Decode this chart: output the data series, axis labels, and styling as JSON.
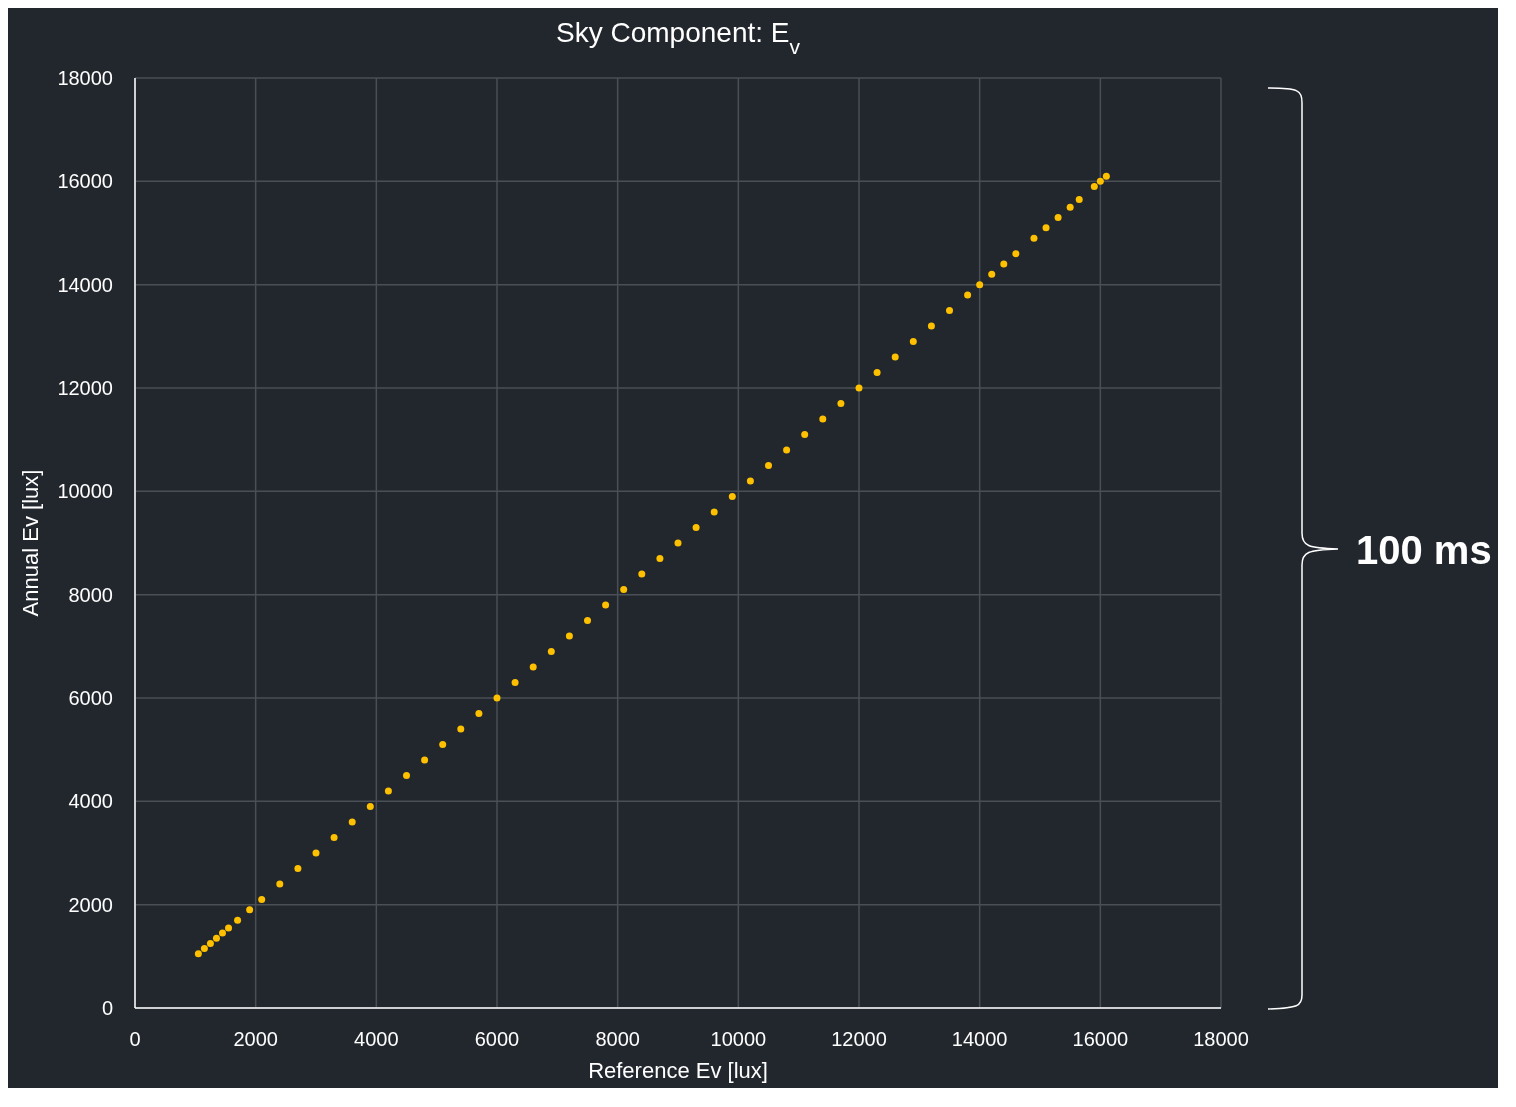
{
  "chart_data": {
    "type": "scatter",
    "title": "Sky Component: E$_{v}$",
    "xlabel": "Reference Ev [lux]",
    "ylabel": "Annual Ev [lux]",
    "x": [
      1050,
      1150,
      1250,
      1350,
      1450,
      1550,
      1700,
      1900,
      2100,
      2400,
      2700,
      3000,
      3300,
      3600,
      3900,
      4200,
      4500,
      4800,
      5100,
      5400,
      5700,
      6000,
      6300,
      6600,
      6900,
      7200,
      7500,
      7800,
      8100,
      8400,
      8700,
      9000,
      9300,
      9600,
      9900,
      10200,
      10500,
      10800,
      11100,
      11400,
      11700,
      12000,
      12300,
      12600,
      12900,
      13200,
      13500,
      13800,
      14000,
      14200,
      14400,
      14600,
      14900,
      15100,
      15300,
      15500,
      15650,
      15900,
      16000,
      16100
    ],
    "series": [
      {
        "color": "#ffc000",
        "values": [
          1050,
          1150,
          1250,
          1350,
          1450,
          1550,
          1700,
          1900,
          2100,
          2400,
          2700,
          3000,
          3300,
          3600,
          3900,
          4200,
          4500,
          4800,
          5100,
          5400,
          5700,
          6000,
          6300,
          6600,
          6900,
          7200,
          7500,
          7800,
          8100,
          8400,
          8700,
          9000,
          9300,
          9600,
          9900,
          10200,
          10500,
          10800,
          11100,
          11400,
          11700,
          12000,
          12300,
          12600,
          12900,
          13200,
          13500,
          13800,
          14000,
          14200,
          14400,
          14600,
          14900,
          15100,
          15300,
          15500,
          15650,
          15900,
          16000,
          16100
        ]
      }
    ],
    "xlim": [
      0,
      18000
    ],
    "xticks": [
      0,
      2000,
      4000,
      6000,
      8000,
      10000,
      12000,
      14000,
      16000,
      18000
    ],
    "ylim": [
      0,
      18000
    ],
    "yticks": [
      0,
      2000,
      4000,
      6000,
      8000,
      10000,
      12000,
      14000,
      16000,
      18000
    ],
    "grid": true,
    "marker": "circle",
    "annotations": [
      "100 ms"
    ]
  }
}
